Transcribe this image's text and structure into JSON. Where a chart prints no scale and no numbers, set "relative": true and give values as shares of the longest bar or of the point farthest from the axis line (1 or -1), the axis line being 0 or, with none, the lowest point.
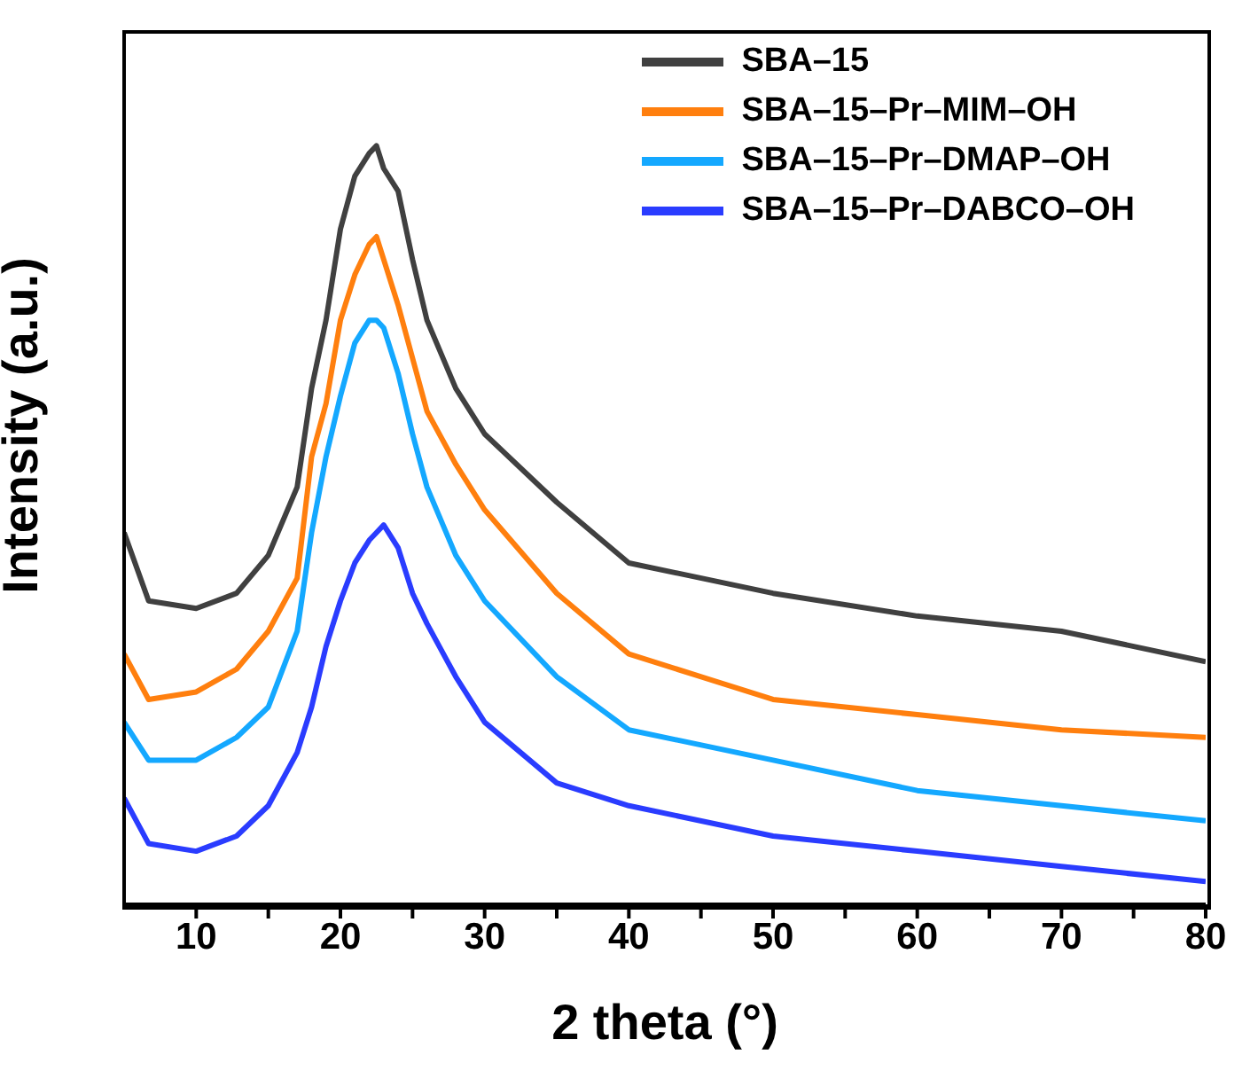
{
  "chart_data": {
    "type": "line",
    "relative": true,
    "xlabel": "2 theta (°)",
    "ylabel": "Intensity (a.u.)",
    "xlim": [
      5,
      80
    ],
    "xticks": [
      10,
      {
        "value": 15,
        "label": null
      },
      20,
      {
        "value": 25,
        "label": null
      },
      30,
      {
        "value": 35,
        "label": null
      },
      40,
      {
        "value": 45,
        "label": null
      },
      50,
      {
        "value": 55,
        "label": null
      },
      60,
      {
        "value": 65,
        "label": null
      },
      70,
      {
        "value": 75,
        "label": null
      },
      80
    ],
    "x": [
      5,
      6.7,
      10,
      12.8,
      15,
      17,
      18,
      19,
      20,
      21,
      22,
      22.5,
      23,
      24,
      25,
      26,
      28,
      30,
      35,
      40,
      50,
      60,
      70,
      80
    ],
    "legend": "top right",
    "marker": "none",
    "line_style": "solid",
    "grid": false,
    "series": [
      {
        "name": "SBA–15",
        "color": "#404040",
        "values": [
          0.49,
          0.4,
          0.39,
          0.41,
          0.46,
          0.55,
          0.68,
          0.77,
          0.89,
          0.96,
          0.99,
          1,
          0.97,
          0.94,
          0.85,
          0.77,
          0.68,
          0.62,
          0.53,
          0.45,
          0.41,
          0.38,
          0.36,
          0.32
        ]
      },
      {
        "name": "SBA–15–Pr–MIM–OH",
        "color": "#ff7f0e",
        "values": [
          0.33,
          0.27,
          0.28,
          0.31,
          0.36,
          0.43,
          0.59,
          0.66,
          0.77,
          0.83,
          0.87,
          0.88,
          0.85,
          0.79,
          0.72,
          0.65,
          0.58,
          0.52,
          0.41,
          0.33,
          0.27,
          0.25,
          0.23,
          0.22
        ]
      },
      {
        "name": "SBA–15–Pr–DMAP–OH",
        "color": "#14a8ff",
        "values": [
          0.24,
          0.19,
          0.19,
          0.22,
          0.26,
          0.36,
          0.49,
          0.59,
          0.67,
          0.74,
          0.77,
          0.77,
          0.76,
          0.7,
          0.62,
          0.55,
          0.46,
          0.4,
          0.3,
          0.23,
          0.19,
          0.15,
          0.13,
          0.11
        ]
      },
      {
        "name": "SBA–15–Pr–DABCO–OH",
        "color": "#2a3cff",
        "values": [
          0.14,
          0.08,
          0.07,
          0.09,
          0.13,
          0.2,
          0.26,
          0.34,
          0.4,
          0.45,
          0.48,
          0.49,
          0.5,
          0.47,
          0.41,
          0.37,
          0.3,
          0.24,
          0.16,
          0.13,
          0.09,
          0.07,
          0.05,
          0.03
        ]
      }
    ]
  }
}
